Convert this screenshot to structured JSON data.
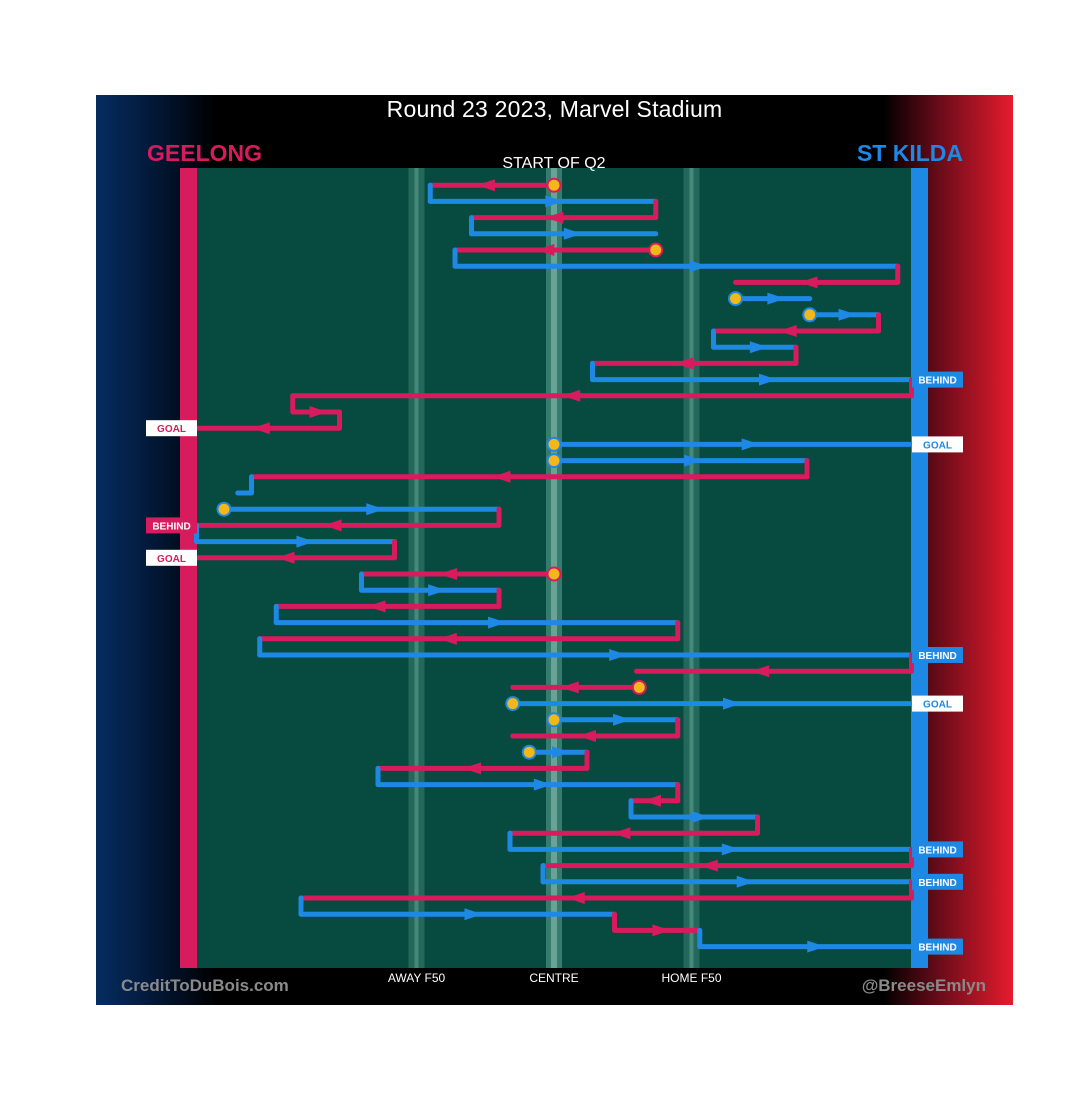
{
  "header": {
    "title": "Round 23 2023, Marvel Stadium",
    "team_left": "GEELONG",
    "team_right": "ST KILDA"
  },
  "footer": {
    "credit_left": "CreditToDuBois.com",
    "credit_right": "@BreeseEmlyn"
  },
  "colors": {
    "geelong": "#d81b5c",
    "stkilda": "#1e88e5",
    "field": "#064a40",
    "centre_bounce": "#f2b71a"
  },
  "chart_data": {
    "type": "line",
    "title": "Round 23 2023, Marvel Stadium",
    "subtitle": "START OF Q2",
    "x_axis_labels": [
      "AWAY F50",
      "CENTRE",
      "HOME F50"
    ],
    "x_axis_label_positions": [
      -50,
      0,
      50
    ],
    "xlim": [
      -135,
      135
    ],
    "series": [
      {
        "name": "GEELONG",
        "color": "#d81b5c"
      },
      {
        "name": "ST KILDA",
        "color": "#1e88e5"
      }
    ],
    "chains": [
      {
        "team": "GEELONG",
        "x": 0,
        "y": 1,
        "bounce": true
      },
      {
        "team": "GEELONG",
        "x": -45,
        "y": 1
      },
      {
        "team": "ST KILDA",
        "x": -45,
        "y": 2
      },
      {
        "team": "ST KILDA",
        "x": 37,
        "y": 2
      },
      {
        "team": "GEELONG",
        "x": 37,
        "y": 3
      },
      {
        "team": "GEELONG",
        "x": -30,
        "y": 3
      },
      {
        "team": "ST KILDA",
        "x": -30,
        "y": 4
      },
      {
        "team": "ST KILDA",
        "x": 37,
        "y": 4
      },
      {
        "team": "GEELONG",
        "x": 37,
        "y": 5,
        "bounce": true
      },
      {
        "team": "GEELONG",
        "x": -36,
        "y": 5
      },
      {
        "team": "ST KILDA",
        "x": -36,
        "y": 6
      },
      {
        "team": "ST KILDA",
        "x": 125,
        "y": 6
      },
      {
        "team": "GEELONG",
        "x": 125,
        "y": 7
      },
      {
        "team": "GEELONG",
        "x": 66,
        "y": 7
      },
      {
        "team": "ST KILDA",
        "x": 66,
        "y": 8,
        "bounce": true
      },
      {
        "team": "ST KILDA",
        "x": 93,
        "y": 8
      },
      {
        "team": "ST KILDA",
        "x": 93,
        "y": 9,
        "bounce": true
      },
      {
        "team": "ST KILDA",
        "x": 118,
        "y": 9
      },
      {
        "team": "GEELONG",
        "x": 118,
        "y": 10
      },
      {
        "team": "GEELONG",
        "x": 58,
        "y": 10
      },
      {
        "team": "ST KILDA",
        "x": 58,
        "y": 11
      },
      {
        "team": "ST KILDA",
        "x": 88,
        "y": 11
      },
      {
        "team": "GEELONG",
        "x": 88,
        "y": 12
      },
      {
        "team": "GEELONG",
        "x": 14,
        "y": 12
      },
      {
        "team": "ST KILDA",
        "x": 14,
        "y": 13
      },
      {
        "team": "ST KILDA",
        "x": 130,
        "y": 13,
        "result": "BEHIND"
      },
      {
        "team": "GEELONG",
        "x": 130,
        "y": 14
      },
      {
        "team": "GEELONG",
        "x": -95,
        "y": 14
      },
      {
        "team": "GEELONG",
        "x": -78,
        "y": 15
      },
      {
        "team": "GEELONG",
        "x": -130,
        "y": 16,
        "result": "GOAL"
      },
      {
        "team": "ST KILDA",
        "x": 0,
        "y": 17,
        "bounce": true
      },
      {
        "team": "ST KILDA",
        "x": 130,
        "y": 17,
        "result": "GOAL"
      },
      {
        "team": "ST KILDA",
        "x": 0,
        "y": 18,
        "bounce": true
      },
      {
        "team": "ST KILDA",
        "x": 92,
        "y": 18
      },
      {
        "team": "GEELONG",
        "x": 92,
        "y": 19
      },
      {
        "team": "GEELONG",
        "x": -110,
        "y": 19
      },
      {
        "team": "ST KILDA",
        "x": -115,
        "y": 20
      },
      {
        "team": "ST KILDA",
        "x": -120,
        "y": 21,
        "bounce": true
      },
      {
        "team": "ST KILDA",
        "x": -20,
        "y": 21
      },
      {
        "team": "GEELONG",
        "x": -20,
        "y": 22
      },
      {
        "team": "GEELONG",
        "x": -130,
        "y": 22,
        "result": "BEHIND"
      },
      {
        "team": "ST KILDA",
        "x": -130,
        "y": 23
      },
      {
        "team": "ST KILDA",
        "x": -58,
        "y": 23
      },
      {
        "team": "GEELONG",
        "x": -58,
        "y": 24
      },
      {
        "team": "GEELONG",
        "x": -130,
        "y": 24,
        "result": "GOAL"
      },
      {
        "team": "GEELONG",
        "x": 0,
        "y": 25,
        "bounce": true
      },
      {
        "team": "GEELONG",
        "x": -70,
        "y": 25
      },
      {
        "team": "ST KILDA",
        "x": -70,
        "y": 26
      },
      {
        "team": "ST KILDA",
        "x": -20,
        "y": 26
      },
      {
        "team": "GEELONG",
        "x": -20,
        "y": 27
      },
      {
        "team": "GEELONG",
        "x": -101,
        "y": 27
      },
      {
        "team": "ST KILDA",
        "x": -101,
        "y": 28
      },
      {
        "team": "ST KILDA",
        "x": 45,
        "y": 28
      },
      {
        "team": "GEELONG",
        "x": 45,
        "y": 29
      },
      {
        "team": "GEELONG",
        "x": -107,
        "y": 29
      },
      {
        "team": "ST KILDA",
        "x": -107,
        "y": 30
      },
      {
        "team": "ST KILDA",
        "x": 130,
        "y": 30,
        "result": "BEHIND"
      },
      {
        "team": "GEELONG",
        "x": 130,
        "y": 31
      },
      {
        "team": "GEELONG",
        "x": 30,
        "y": 31
      },
      {
        "team": "GEELONG",
        "x": 31,
        "y": 32,
        "bounce": true
      },
      {
        "team": "GEELONG",
        "x": -15,
        "y": 32
      },
      {
        "team": "ST KILDA",
        "x": -15,
        "y": 33,
        "bounce": true
      },
      {
        "team": "ST KILDA",
        "x": 130,
        "y": 33,
        "result": "GOAL"
      },
      {
        "team": "ST KILDA",
        "x": 0,
        "y": 34,
        "bounce": true
      },
      {
        "team": "ST KILDA",
        "x": 45,
        "y": 34
      },
      {
        "team": "GEELONG",
        "x": 45,
        "y": 35
      },
      {
        "team": "GEELONG",
        "x": -15,
        "y": 35
      },
      {
        "team": "ST KILDA",
        "x": -9,
        "y": 36,
        "bounce": true
      },
      {
        "team": "ST KILDA",
        "x": 12,
        "y": 36
      },
      {
        "team": "GEELONG",
        "x": 12,
        "y": 37
      },
      {
        "team": "GEELONG",
        "x": -64,
        "y": 37
      },
      {
        "team": "ST KILDA",
        "x": -64,
        "y": 38
      },
      {
        "team": "ST KILDA",
        "x": 45,
        "y": 38
      },
      {
        "team": "GEELONG",
        "x": 45,
        "y": 39
      },
      {
        "team": "GEELONG",
        "x": 28,
        "y": 39
      },
      {
        "team": "ST KILDA",
        "x": 28,
        "y": 40
      },
      {
        "team": "ST KILDA",
        "x": 74,
        "y": 40
      },
      {
        "team": "GEELONG",
        "x": 74,
        "y": 41
      },
      {
        "team": "GEELONG",
        "x": -16,
        "y": 41
      },
      {
        "team": "ST KILDA",
        "x": -16,
        "y": 42
      },
      {
        "team": "ST KILDA",
        "x": 130,
        "y": 42,
        "result": "BEHIND"
      },
      {
        "team": "GEELONG",
        "x": 130,
        "y": 43
      },
      {
        "team": "GEELONG",
        "x": -4,
        "y": 43
      },
      {
        "team": "ST KILDA",
        "x": -4,
        "y": 44
      },
      {
        "team": "ST KILDA",
        "x": 130,
        "y": 44,
        "result": "BEHIND"
      },
      {
        "team": "GEELONG",
        "x": 130,
        "y": 45
      },
      {
        "team": "GEELONG",
        "x": -92,
        "y": 45
      },
      {
        "team": "ST KILDA",
        "x": -92,
        "y": 46
      },
      {
        "team": "ST KILDA",
        "x": 22,
        "y": 46
      },
      {
        "team": "GEELONG",
        "x": 22,
        "y": 47
      },
      {
        "team": "GEELONG",
        "x": 53,
        "y": 47
      },
      {
        "team": "ST KILDA",
        "x": 53,
        "y": 48
      },
      {
        "team": "ST KILDA",
        "x": 130,
        "y": 48,
        "result": "BEHIND"
      }
    ]
  }
}
